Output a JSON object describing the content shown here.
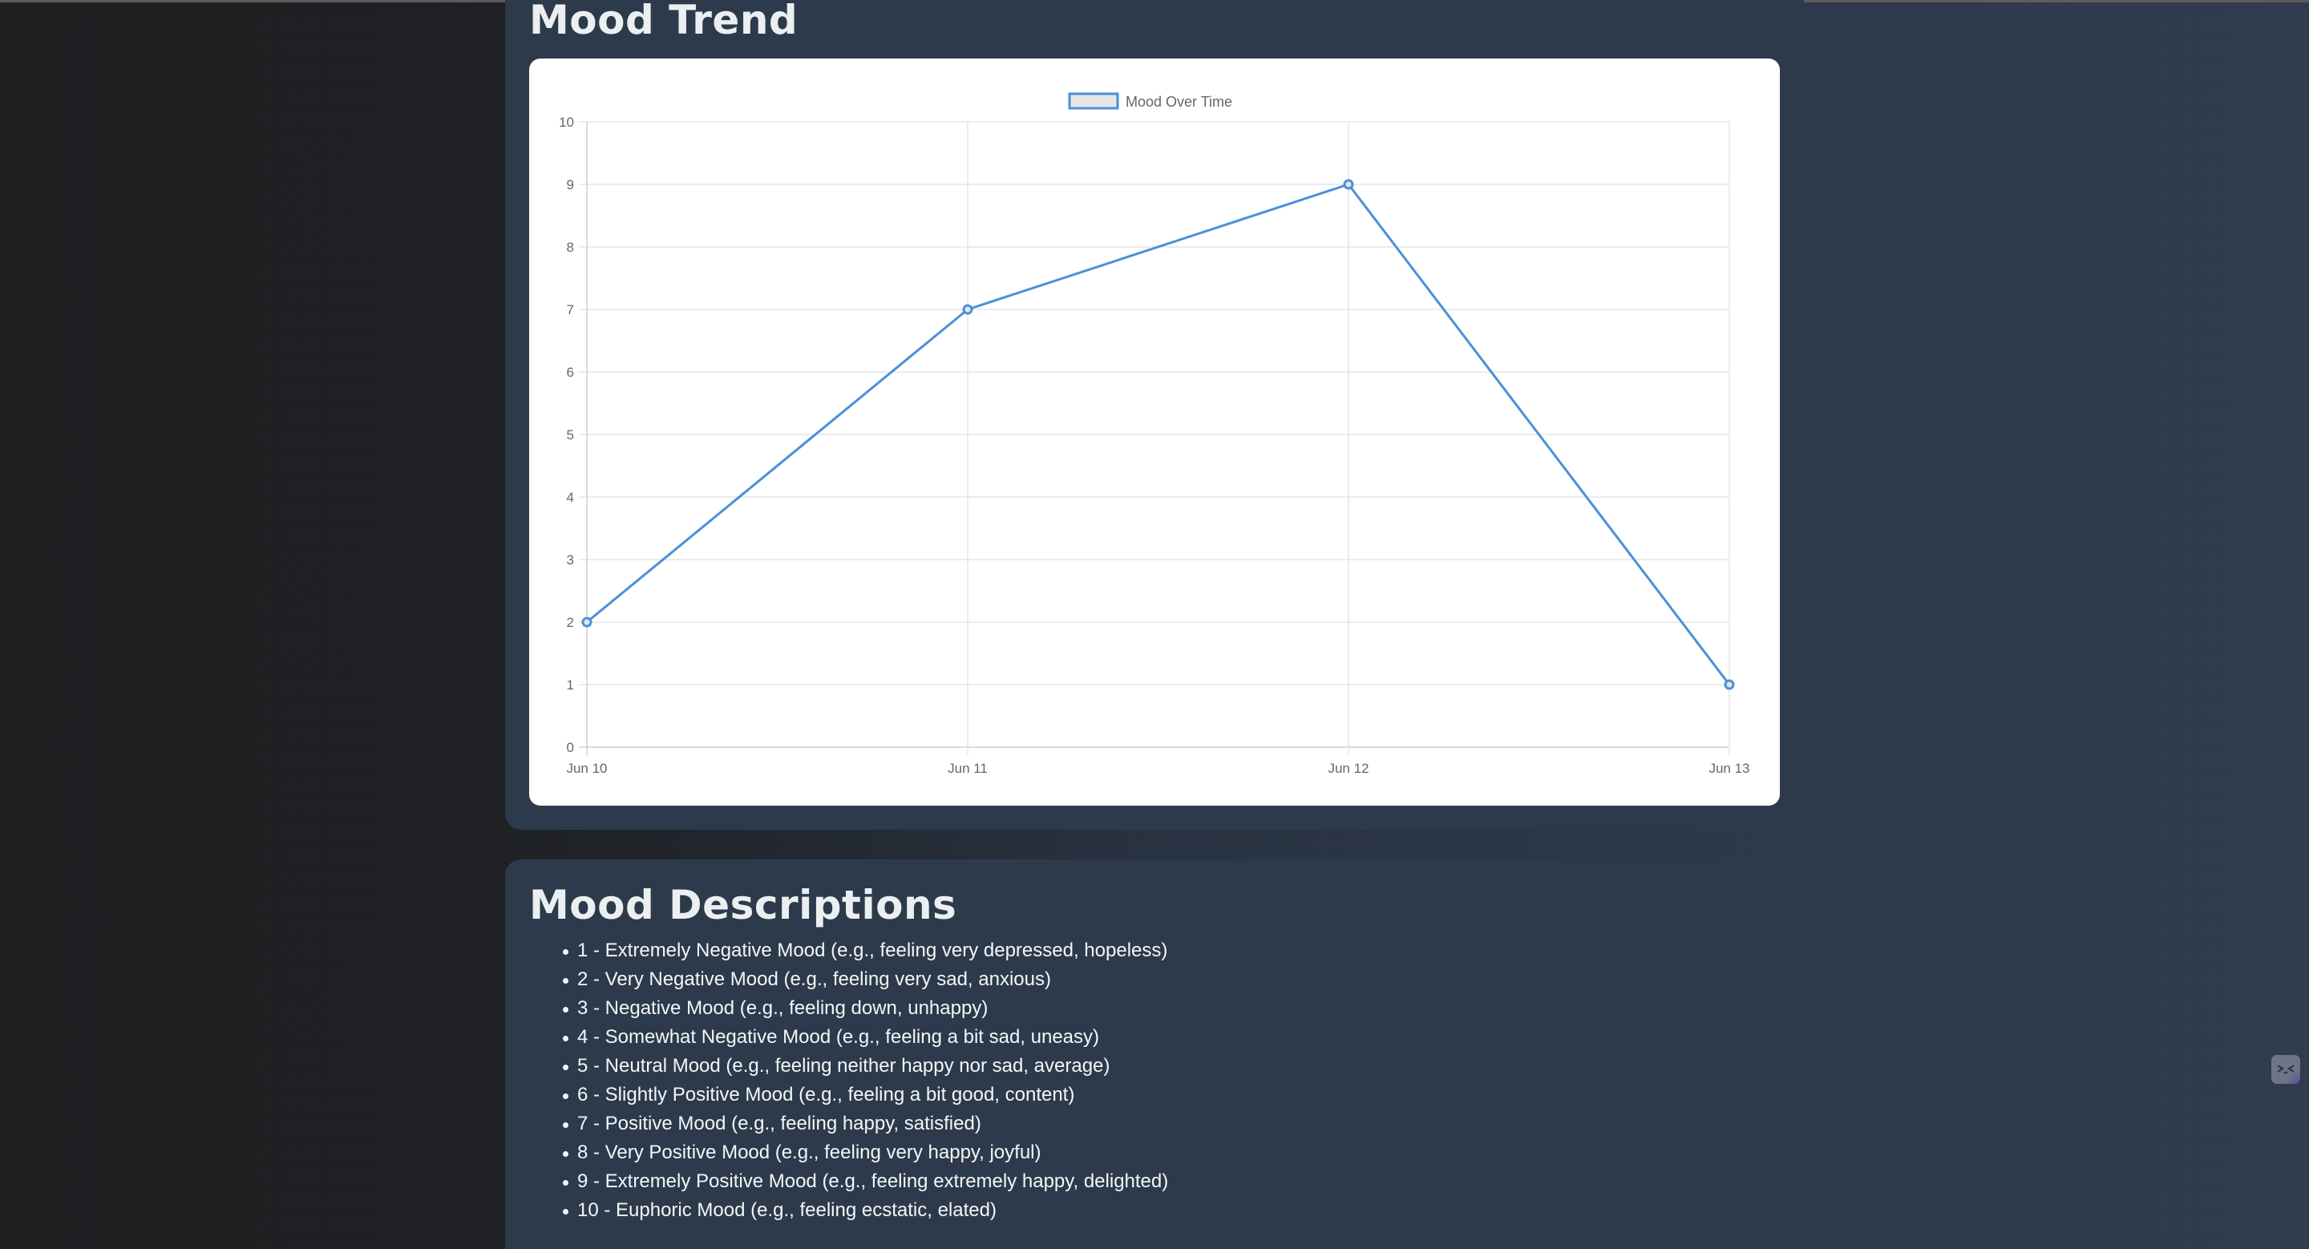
{
  "trend_panel": {
    "title": "Mood Trend"
  },
  "desc_panel": {
    "title": "Mood Descriptions",
    "items": [
      "1 - Extremely Negative Mood (e.g., feeling very depressed, hopeless)",
      "2 - Very Negative Mood (e.g., feeling very sad, anxious)",
      "3 - Negative Mood (e.g., feeling down, unhappy)",
      "4 - Somewhat Negative Mood (e.g., feeling a bit sad, uneasy)",
      "5 - Neutral Mood (e.g., feeling neither happy nor sad, average)",
      "6 - Slightly Positive Mood (e.g., feeling a bit good, content)",
      "7 - Positive Mood (e.g., feeling happy, satisfied)",
      "8 - Very Positive Mood (e.g., feeling very happy, joyful)",
      "9 - Extremely Positive Mood (e.g., feeling extremely happy, delighted)",
      "10 - Euphoric Mood (e.g., feeling ecstatic, elated)"
    ]
  },
  "widget": {
    "icon": "face-emoticon-icon",
    "glyph": ">‿<"
  },
  "colors": {
    "line": "#4a90d9",
    "legend_fill": "#e6e6e6",
    "grid": "#e5e5e5",
    "panel_bg": "#2d3a4b",
    "tick_text": "#666666"
  },
  "chart_data": {
    "type": "line",
    "title": "",
    "legend": [
      "Mood Over Time"
    ],
    "legend_position": "top",
    "categories": [
      "Jun 10",
      "Jun 11",
      "Jun 12",
      "Jun 13"
    ],
    "series": [
      {
        "name": "Mood Over Time",
        "values": [
          2,
          7,
          9,
          1
        ]
      }
    ],
    "xlabel": "",
    "ylabel": "",
    "ylim": [
      0,
      10
    ],
    "yticks": [
      "0",
      "1",
      "2",
      "3",
      "4",
      "5",
      "6",
      "7",
      "8",
      "9",
      "10"
    ],
    "grid": true
  }
}
